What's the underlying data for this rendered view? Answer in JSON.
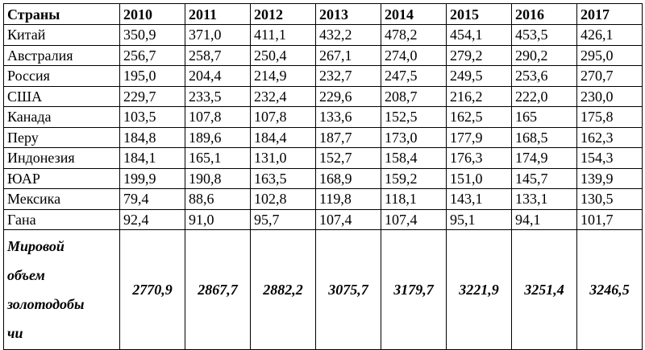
{
  "table": {
    "header": [
      "Страны",
      "2010",
      "2011",
      "2012",
      "2013",
      "2014",
      "2015",
      "2016",
      "2017"
    ],
    "rows": [
      [
        "Китай",
        "350,9",
        "371,0",
        "411,1",
        "432,2",
        "478,2",
        "454,1",
        "453,5",
        "426,1"
      ],
      [
        "Австралия",
        "256,7",
        "258,7",
        "250,4",
        "267,1",
        "274,0",
        "279,2",
        "290,2",
        "295,0"
      ],
      [
        "Россия",
        "195,0",
        "204,4",
        "214,9",
        "232,7",
        "247,5",
        "249,5",
        "253,6",
        "270,7"
      ],
      [
        "США",
        "229,7",
        "233,5",
        "232,4",
        "229,6",
        "208,7",
        "216,2",
        "222,0",
        "230,0"
      ],
      [
        "Канада",
        "103,5",
        "107,8",
        "107,8",
        "133,6",
        "152,5",
        "162,5",
        "165",
        "175,8"
      ],
      [
        "Перу",
        "184,8",
        "189,6",
        "184,4",
        "187,7",
        "173,0",
        "177,9",
        "168,5",
        "162,3"
      ],
      [
        "Индонезия",
        "184,1",
        "165,1",
        "131,0",
        "152,7",
        "158,4",
        "176,3",
        "174,9",
        "154,3"
      ],
      [
        "ЮАР",
        "199,9",
        "190,8",
        "163,5",
        "168,9",
        "159,2",
        "151,0",
        "145,7",
        "139,9"
      ],
      [
        "Мексика",
        "79,4",
        "88,6",
        "102,8",
        "119,8",
        "118,1",
        "143,1",
        "133,1",
        "130,5"
      ],
      [
        "Гана",
        "92,4",
        "91,0",
        "95,7",
        "107,4",
        "107,4",
        "95,1",
        "94,1",
        "101,7"
      ]
    ],
    "total": {
      "label_lines": [
        "Мировой",
        "объем",
        "золотодобы",
        "чи"
      ],
      "values": [
        "2770,9",
        "2867,7",
        "2882,2",
        "3075,7",
        "3179,7",
        "3221,9",
        "3251,4",
        "3246,5"
      ]
    }
  }
}
